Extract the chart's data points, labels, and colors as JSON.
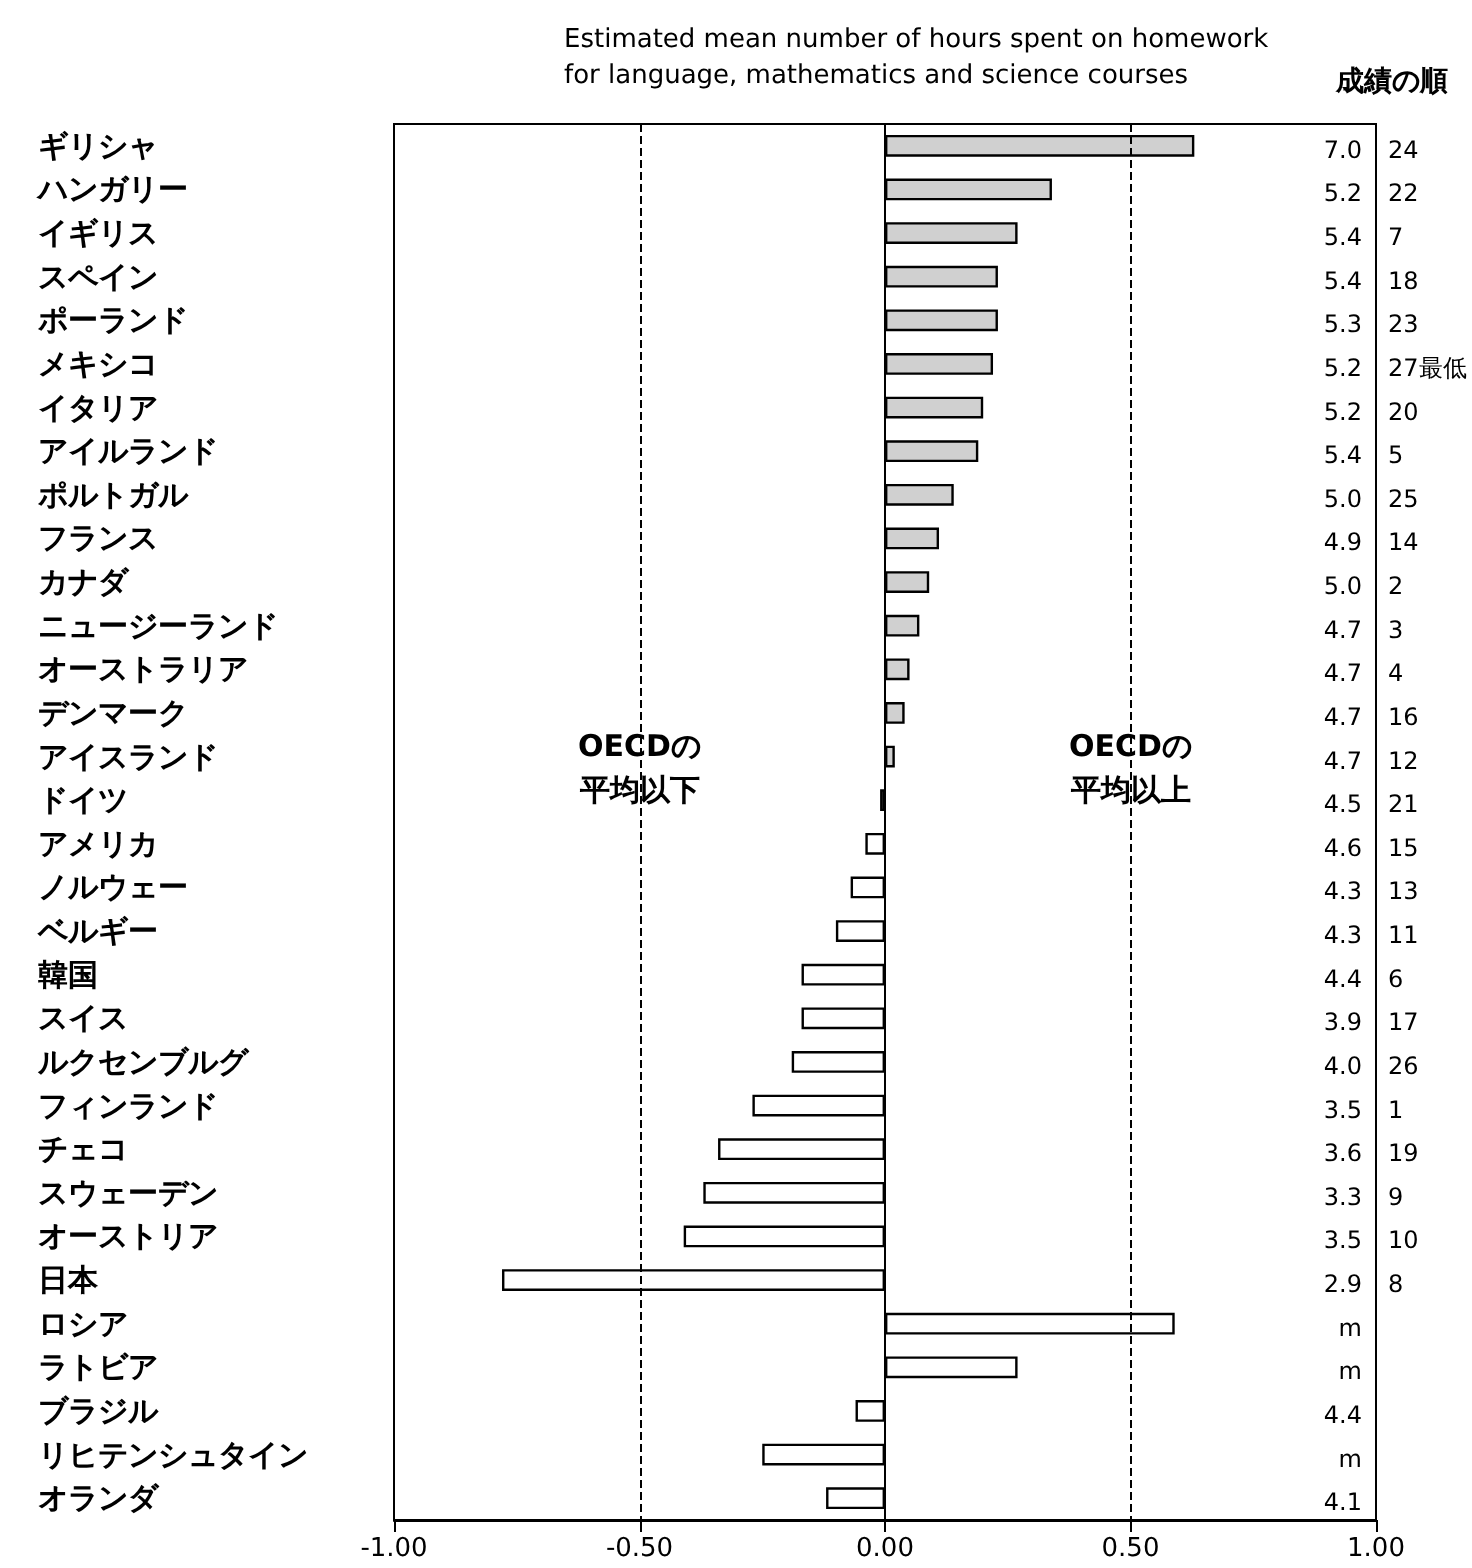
{
  "chart_data": {
    "type": "bar",
    "orientation": "horizontal",
    "title": "Estimated mean number of hours spent on homework\nfor language, mathematics and science courses",
    "categories": [
      "ギリシャ",
      "ハンガリー",
      "イギリス",
      "スペイン",
      "ポーランド",
      "メキシコ",
      "イタリア",
      "アイルランド",
      "ポルトガル",
      "フランス",
      "カナダ",
      "ニュージーランド",
      "オーストラリア",
      "デンマーク",
      "アイスランド",
      "ドイツ",
      "アメリカ",
      "ノルウェー",
      "ベルギー",
      "韓国",
      "スイス",
      "ルクセンブルグ",
      "フィンランド",
      "チェコ",
      "スウェーデン",
      "オーストリア",
      "日本",
      "ロシア",
      "ラトビア",
      "ブラジル",
      "リヒテンシュタイン",
      "オランダ"
    ],
    "values": [
      0.63,
      0.34,
      0.27,
      0.23,
      0.23,
      0.22,
      0.2,
      0.19,
      0.14,
      0.11,
      0.09,
      0.07,
      0.05,
      0.04,
      0.02,
      -0.01,
      -0.04,
      -0.07,
      -0.1,
      -0.17,
      -0.17,
      -0.19,
      -0.27,
      -0.34,
      -0.37,
      -0.41,
      -0.78,
      0.59,
      0.27,
      -0.06,
      -0.25,
      -0.12
    ],
    "colors": [
      "#d0d0d0",
      "#d0d0d0",
      "#d0d0d0",
      "#d0d0d0",
      "#d0d0d0",
      "#d0d0d0",
      "#d0d0d0",
      "#d0d0d0",
      "#d0d0d0",
      "#d0d0d0",
      "#d0d0d0",
      "#d0d0d0",
      "#d0d0d0",
      "#d0d0d0",
      "#d0d0d0",
      "#d0d0d0",
      "#ffffff",
      "#ffffff",
      "#ffffff",
      "#ffffff",
      "#ffffff",
      "#ffffff",
      "#ffffff",
      "#ffffff",
      "#ffffff",
      "#ffffff",
      "#ffffff",
      "#ffffff",
      "#ffffff",
      "#ffffff",
      "#ffffff",
      "#ffffff"
    ],
    "xlim": [
      -1,
      1
    ],
    "xticks": [
      {
        "value": -1,
        "label": "-1.00"
      },
      {
        "value": -0.5,
        "label": "-0.50"
      },
      {
        "value": 0,
        "label": "0.00"
      },
      {
        "value": 0.5,
        "label": "0.50"
      },
      {
        "value": 1,
        "label": "1.00"
      }
    ],
    "ref_lines": [
      {
        "axis": "x",
        "value": -0.5,
        "label": "OECDの平均以下",
        "line_style": "dashed"
      },
      {
        "axis": "x",
        "value": 0.5,
        "label": "OECDの平均以上",
        "line_style": "dashed"
      }
    ],
    "annotations": [
      "成績の順",
      "7.0",
      "5.2",
      "5.4",
      "5.4",
      "5.3",
      "5.2",
      "5.2",
      "5.4",
      "5.0",
      "4.9",
      "5.0",
      "4.7",
      "4.7",
      "4.7",
      "4.7",
      "4.5",
      "4.6",
      "4.3",
      "4.3",
      "4.4",
      "3.9",
      "4.0",
      "3.5",
      "3.6",
      "3.3",
      "3.5",
      "2.9",
      "m",
      "m",
      "4.4",
      "m",
      "4.1",
      "24",
      "22",
      "7",
      "18",
      "23",
      "27最低",
      "20",
      "5",
      "25",
      "14",
      "2",
      "3",
      "4",
      "16",
      "12",
      "21",
      "15",
      "13",
      "11",
      "6",
      "17",
      "26",
      "1",
      "19",
      "9",
      "10",
      "8"
    ],
    "grid": false
  }
}
